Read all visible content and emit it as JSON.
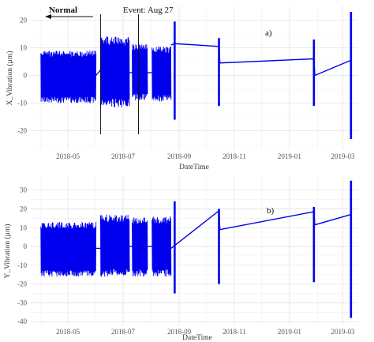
{
  "chart_data": [
    {
      "type": "line",
      "panel_label": "a)",
      "xlabel": "DateTime",
      "ylabel": "X_Vibration (µm)",
      "x_ticks": [
        "2018-05",
        "2018-07",
        "2018-09",
        "2018-11",
        "2019-01",
        "2019-03"
      ],
      "x_range": [
        "2018-03-20",
        "2019-03-18"
      ],
      "ylim": [
        -27,
        25
      ],
      "y_ticks": [
        20,
        10,
        0,
        -10,
        -20
      ],
      "grid": true,
      "annotations": [
        {
          "text": "Normal",
          "weight": "bold"
        },
        {
          "text": "Event: Aug 27",
          "weight": "normal"
        }
      ],
      "series": [
        {
          "color": "#0000ee",
          "dense_bands": [
            {
              "start": "2018-04-01",
              "end": "2018-06-01",
              "min": -10,
              "max": 9
            },
            {
              "start": "2018-06-06",
              "end": "2018-07-08",
              "min": -11.5,
              "max": 14
            },
            {
              "start": "2018-07-11",
              "end": "2018-07-28",
              "min": -9,
              "max": 11.5
            },
            {
              "start": "2018-08-02",
              "end": "2018-08-23",
              "min": -9.5,
              "max": 10.5
            }
          ],
          "gaps": [
            {
              "from": "2018-06-01",
              "to": "2018-06-06",
              "from_y": 0,
              "to_y": 2
            },
            {
              "from": "2018-07-08",
              "to": "2018-07-11",
              "from_y": 1,
              "to_y": 1
            },
            {
              "from": "2018-07-28",
              "to": "2018-08-02",
              "from_y": 1,
              "to_y": 1
            }
          ],
          "spikes": [
            {
              "date": "2018-08-27",
              "min": -16,
              "max": 19.5
            },
            {
              "date": "2018-10-15",
              "min": -11,
              "max": 13.5
            },
            {
              "date": "2019-01-28",
              "min": -11,
              "max": 13
            },
            {
              "date": "2019-03-10",
              "min": -23,
              "max": 23
            }
          ],
          "trend": [
            {
              "x": "2018-08-23",
              "y": 11
            },
            {
              "x": "2018-08-27",
              "y": 11.5
            },
            {
              "x": "2018-10-15",
              "y": 10.5
            },
            {
              "x": "2018-10-16",
              "y": 4.5
            },
            {
              "x": "2019-01-28",
              "y": 6
            },
            {
              "x": "2019-01-29",
              "y": 0
            },
            {
              "x": "2019-03-10",
              "y": 5.5
            }
          ],
          "event_lines": [
            "2018-06-06",
            "2018-07-18"
          ]
        }
      ]
    },
    {
      "type": "line",
      "panel_label": "b)",
      "xlabel": "DateTime",
      "ylabel": "Y_Vibration (µm)",
      "x_ticks": [
        "2018-05",
        "2018-07",
        "2018-09",
        "2018-11",
        "2019-01",
        "2019-03"
      ],
      "x_range": [
        "2018-03-20",
        "2019-03-18"
      ],
      "ylim": [
        -42,
        37
      ],
      "y_ticks": [
        30,
        20,
        10,
        0,
        -10,
        -20,
        -30,
        -40
      ],
      "grid": true,
      "series": [
        {
          "color": "#0000ee",
          "dense_bands": [
            {
              "start": "2018-04-01",
              "end": "2018-06-01",
              "min": -16,
              "max": 13
            },
            {
              "start": "2018-06-06",
              "end": "2018-07-08",
              "min": -16,
              "max": 17
            },
            {
              "start": "2018-07-11",
              "end": "2018-07-28",
              "min": -16,
              "max": 16
            },
            {
              "start": "2018-08-02",
              "end": "2018-08-23",
              "min": -16,
              "max": 16
            }
          ],
          "gaps": [
            {
              "from": "2018-06-01",
              "to": "2018-06-06",
              "from_y": -1,
              "to_y": -1
            },
            {
              "from": "2018-07-08",
              "to": "2018-07-11",
              "from_y": 0,
              "to_y": 0
            },
            {
              "from": "2018-07-28",
              "to": "2018-08-02",
              "from_y": 0,
              "to_y": 0
            }
          ],
          "spikes": [
            {
              "date": "2018-08-27",
              "min": -25,
              "max": 24
            },
            {
              "date": "2018-10-15",
              "min": -20,
              "max": 20
            },
            {
              "date": "2019-01-28",
              "min": -19,
              "max": 21
            },
            {
              "date": "2019-03-10",
              "min": -38,
              "max": 35
            }
          ],
          "trend": [
            {
              "x": "2018-08-23",
              "y": -1
            },
            {
              "x": "2018-10-15",
              "y": 19
            },
            {
              "x": "2018-10-16",
              "y": 9
            },
            {
              "x": "2019-01-28",
              "y": 18.5
            },
            {
              "x": "2019-01-29",
              "y": 11.5
            },
            {
              "x": "2019-03-10",
              "y": 17
            }
          ],
          "event_lines": []
        }
      ]
    }
  ]
}
